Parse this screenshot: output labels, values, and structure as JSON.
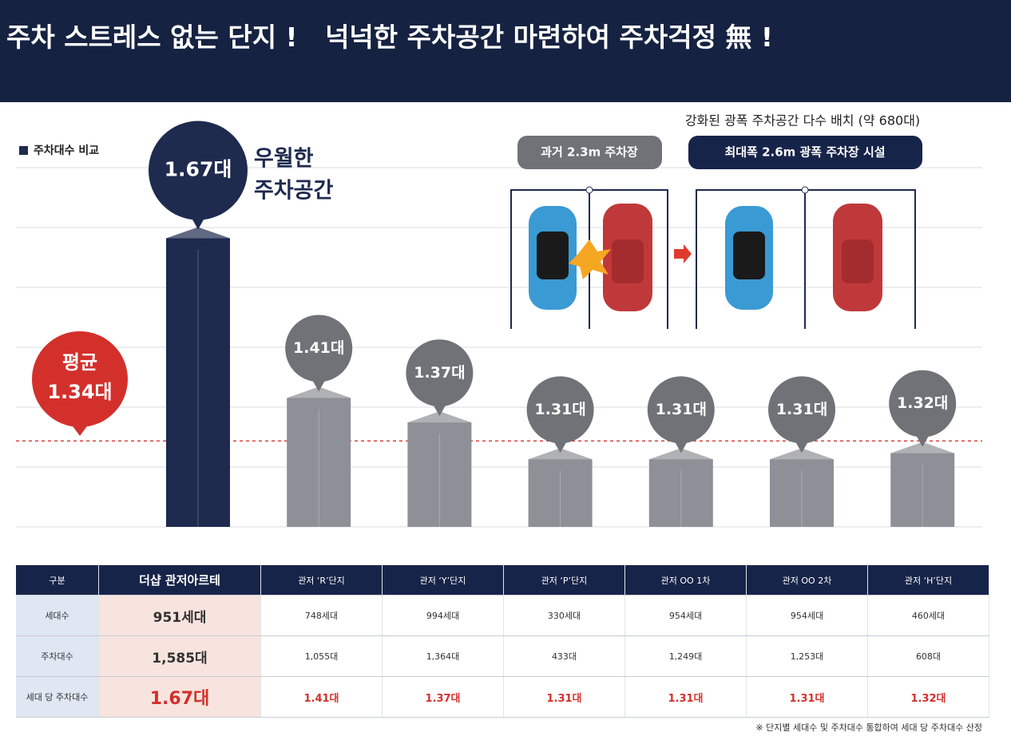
{
  "header": {
    "title": "주차 스트레스 없는 단지 !   넉넉한 주차공간 마련하여 주차걱정 無 !"
  },
  "chart_data": {
    "type": "bar",
    "title": "주차대수 비교",
    "categories": [
      null,
      null,
      null,
      null,
      null,
      null,
      null
    ],
    "values": [
      1.67,
      1.41,
      1.37,
      1.31,
      1.31,
      1.31,
      1.32
    ],
    "value_labels": [
      "1.67대",
      "1.41대",
      "1.37대",
      "1.31대",
      "1.31대",
      "1.31대",
      "1.32대"
    ],
    "colors": [
      "#1e2a4e",
      "#8d9096",
      "#8d9096",
      "#8d9096",
      "#8d9096",
      "#8d9096",
      "#8d9096"
    ],
    "ylim": [
      1.2,
      1.75
    ],
    "grid": true,
    "average": {
      "value": 1.34,
      "label": [
        "평균",
        "1.34대"
      ]
    },
    "annotation": [
      "우월한",
      "주차공간"
    ]
  },
  "parking_diagram": {
    "caption": "강화된 광폭 주차공간 다수 배치 (약 680대)",
    "before_label": "과거 2.3m 주차장",
    "after_label": "최대폭 2.6m  광폭 주차장 시설"
  },
  "table": {
    "header": [
      "구분",
      "더샵 관저아르테",
      "관저 ‘R’단지",
      "관저 ‘Y’단지",
      "관저 ‘P’단지",
      "관저 OO 1차",
      "관저 OO 2차",
      "관저 ‘H’단지"
    ],
    "rows": [
      [
        "세대수",
        "951세대",
        "748세대",
        "994세대",
        "330세대",
        "954세대",
        "954세대",
        "460세대"
      ],
      [
        "주차대수",
        "1,585대",
        "1,055대",
        "1,364대",
        "433대",
        "1,249대",
        "1,253대",
        "608대"
      ],
      [
        "세대 당 주차대수",
        "1.67대",
        "1.41대",
        "1.37대",
        "1.31대",
        "1.31대",
        "1.31대",
        "1.32대"
      ]
    ]
  },
  "footnote": "※ 단지별 세대수 및 주차대수 통합하여 세대 당 주차대수 산정"
}
